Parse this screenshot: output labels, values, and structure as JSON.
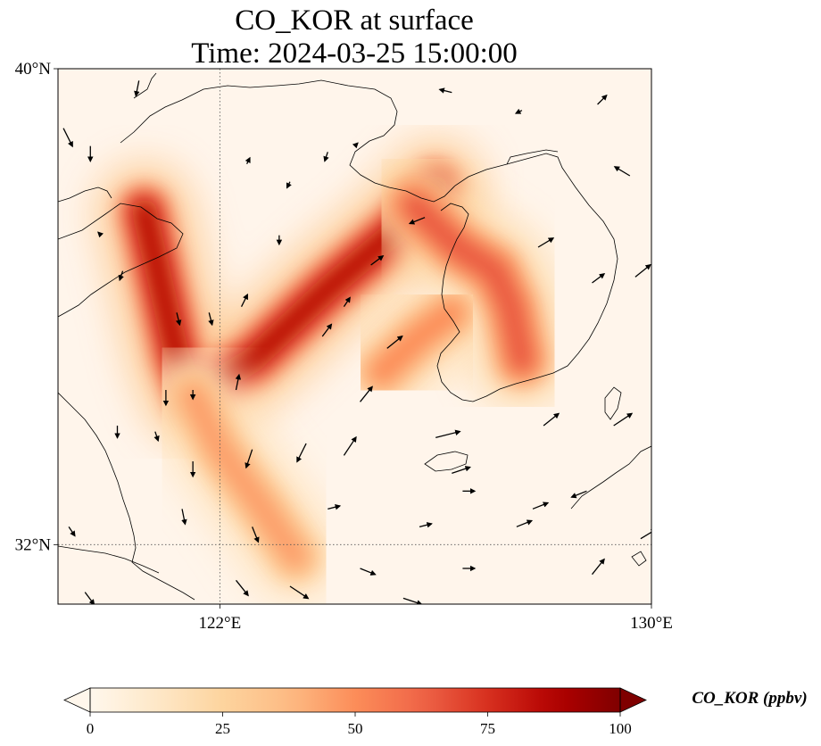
{
  "figure": {
    "title_line1": "CO_KOR at surface",
    "title_line2": "Time: 2024-03-25 15:00:00"
  },
  "map": {
    "lon_range": [
      119,
      130
    ],
    "lat_range": [
      31,
      40
    ],
    "gridlines": {
      "lons": [
        122
      ],
      "lats": [
        32
      ],
      "style": "dotted"
    },
    "x_ticks": [
      {
        "lon": 122,
        "label": "122°E"
      },
      {
        "lon": 130,
        "label": "130°E"
      }
    ],
    "y_ticks": [
      {
        "lat": 40,
        "label": "40°N"
      },
      {
        "lat": 32,
        "label": "32°N"
      }
    ],
    "background_color": "#fff5eb",
    "coastline_color": "#000000"
  },
  "colorbar": {
    "label": "CO_KOR (ppbv)",
    "range": [
      0,
      100
    ],
    "extend": "both",
    "ticks": [
      {
        "value": 0,
        "label": "0"
      },
      {
        "value": 25,
        "label": "25"
      },
      {
        "value": 50,
        "label": "50"
      },
      {
        "value": 75,
        "label": "75"
      },
      {
        "value": 100,
        "label": "100"
      }
    ],
    "colormap": "OrRd",
    "stops": [
      "#fff7ec",
      "#fee8c8",
      "#fdd49e",
      "#fdbb84",
      "#fc8d59",
      "#ef6548",
      "#d7301f",
      "#b30000",
      "#7f0000"
    ]
  },
  "chart_data": {
    "type": "heatmap",
    "variable": "CO_KOR",
    "units": "ppbv",
    "plumes": [
      {
        "path": [
          [
            120.6,
            37.6
          ],
          [
            120.9,
            36.4
          ],
          [
            121.2,
            35.2
          ],
          [
            121.5,
            34.5
          ],
          [
            122.6,
            35.1
          ],
          [
            124.0,
            36.3
          ],
          [
            125.3,
            37.3
          ],
          [
            126.0,
            38.0
          ]
        ],
        "value": 85
      },
      {
        "path": [
          [
            121.5,
            34.5
          ],
          [
            122.0,
            33.6
          ],
          [
            122.8,
            32.6
          ],
          [
            123.4,
            31.8
          ]
        ],
        "value": 45
      },
      {
        "path": [
          [
            125.6,
            37.7
          ],
          [
            126.4,
            37.0
          ],
          [
            127.1,
            36.6
          ],
          [
            127.4,
            36.0
          ],
          [
            127.6,
            35.1
          ]
        ],
        "value": 65
      },
      {
        "path": [
          [
            125.0,
            34.9
          ],
          [
            125.7,
            35.5
          ],
          [
            126.3,
            35.9
          ]
        ],
        "value": 50
      }
    ],
    "wind_vectors": [
      {
        "lon": 119.1,
        "lat": 39.0,
        "u": 0.3,
        "v": -0.6
      },
      {
        "lon": 119.6,
        "lat": 38.7,
        "u": 0.0,
        "v": -0.5
      },
      {
        "lon": 120.5,
        "lat": 39.8,
        "u": -0.1,
        "v": -0.5
      },
      {
        "lon": 122.5,
        "lat": 38.4,
        "u": 0.1,
        "v": 0.2
      },
      {
        "lon": 123.3,
        "lat": 38.1,
        "u": -0.1,
        "v": -0.2
      },
      {
        "lon": 124.0,
        "lat": 38.6,
        "u": -0.1,
        "v": -0.3
      },
      {
        "lon": 124.5,
        "lat": 38.7,
        "u": 0.1,
        "v": 0.1
      },
      {
        "lon": 126.3,
        "lat": 39.6,
        "u": -0.4,
        "v": 0.1
      },
      {
        "lon": 127.6,
        "lat": 39.3,
        "u": -0.2,
        "v": -0.1
      },
      {
        "lon": 129.0,
        "lat": 39.4,
        "u": 0.3,
        "v": 0.3
      },
      {
        "lon": 129.6,
        "lat": 38.2,
        "u": -0.5,
        "v": 0.3
      },
      {
        "lon": 119.8,
        "lat": 37.2,
        "u": -0.1,
        "v": 0.1
      },
      {
        "lon": 120.2,
        "lat": 36.6,
        "u": -0.1,
        "v": -0.3
      },
      {
        "lon": 121.2,
        "lat": 35.9,
        "u": 0.1,
        "v": -0.4
      },
      {
        "lon": 121.8,
        "lat": 35.9,
        "u": 0.1,
        "v": -0.4
      },
      {
        "lon": 122.4,
        "lat": 36.0,
        "u": 0.2,
        "v": 0.4
      },
      {
        "lon": 123.1,
        "lat": 37.2,
        "u": 0.0,
        "v": -0.3
      },
      {
        "lon": 124.8,
        "lat": 36.7,
        "u": 0.4,
        "v": 0.3
      },
      {
        "lon": 125.8,
        "lat": 37.5,
        "u": -0.5,
        "v": -0.2
      },
      {
        "lon": 127.9,
        "lat": 37.0,
        "u": 0.5,
        "v": 0.3
      },
      {
        "lon": 128.9,
        "lat": 36.4,
        "u": 0.4,
        "v": 0.3
      },
      {
        "lon": 129.7,
        "lat": 36.5,
        "u": 0.5,
        "v": 0.4
      },
      {
        "lon": 123.9,
        "lat": 35.5,
        "u": 0.3,
        "v": 0.4
      },
      {
        "lon": 125.1,
        "lat": 35.3,
        "u": 0.5,
        "v": 0.4
      },
      {
        "lon": 121.0,
        "lat": 34.6,
        "u": 0.0,
        "v": -0.5
      },
      {
        "lon": 121.5,
        "lat": 34.6,
        "u": 0.0,
        "v": -0.3
      },
      {
        "lon": 122.3,
        "lat": 34.6,
        "u": 0.1,
        "v": 0.5
      },
      {
        "lon": 124.6,
        "lat": 34.4,
        "u": 0.4,
        "v": 0.5
      },
      {
        "lon": 120.1,
        "lat": 34.0,
        "u": 0.0,
        "v": -0.4
      },
      {
        "lon": 120.8,
        "lat": 33.9,
        "u": 0.1,
        "v": -0.3
      },
      {
        "lon": 123.6,
        "lat": 33.7,
        "u": -0.3,
        "v": -0.6
      },
      {
        "lon": 124.3,
        "lat": 33.5,
        "u": 0.4,
        "v": 0.6
      },
      {
        "lon": 126.0,
        "lat": 33.8,
        "u": 0.8,
        "v": 0.2
      },
      {
        "lon": 128.0,
        "lat": 34.0,
        "u": 0.5,
        "v": 0.4
      },
      {
        "lon": 129.3,
        "lat": 34.0,
        "u": 0.6,
        "v": 0.4
      },
      {
        "lon": 121.5,
        "lat": 33.4,
        "u": 0.0,
        "v": -0.5
      },
      {
        "lon": 122.6,
        "lat": 33.6,
        "u": -0.2,
        "v": -0.6
      },
      {
        "lon": 126.3,
        "lat": 33.2,
        "u": 0.6,
        "v": 0.2
      },
      {
        "lon": 126.5,
        "lat": 32.9,
        "u": 0.4,
        "v": 0.0
      },
      {
        "lon": 127.8,
        "lat": 32.6,
        "u": 0.5,
        "v": 0.2
      },
      {
        "lon": 121.3,
        "lat": 32.6,
        "u": 0.1,
        "v": -0.5
      },
      {
        "lon": 122.6,
        "lat": 32.3,
        "u": 0.2,
        "v": -0.5
      },
      {
        "lon": 124.0,
        "lat": 32.6,
        "u": 0.4,
        "v": 0.1
      },
      {
        "lon": 125.7,
        "lat": 32.3,
        "u": 0.4,
        "v": 0.1
      },
      {
        "lon": 127.5,
        "lat": 32.3,
        "u": 0.5,
        "v": 0.2
      },
      {
        "lon": 129.8,
        "lat": 32.1,
        "u": 0.5,
        "v": 0.3
      },
      {
        "lon": 122.3,
        "lat": 31.4,
        "u": 0.4,
        "v": -0.5
      },
      {
        "lon": 123.3,
        "lat": 31.3,
        "u": 0.6,
        "v": -0.4
      },
      {
        "lon": 124.6,
        "lat": 31.6,
        "u": 0.5,
        "v": -0.2
      },
      {
        "lon": 125.4,
        "lat": 31.1,
        "u": 0.6,
        "v": -0.2
      },
      {
        "lon": 126.5,
        "lat": 31.6,
        "u": 0.4,
        "v": 0.0
      },
      {
        "lon": 128.9,
        "lat": 31.5,
        "u": 0.4,
        "v": 0.5
      },
      {
        "lon": 119.5,
        "lat": 31.2,
        "u": 0.3,
        "v": -0.4
      },
      {
        "lon": 119.2,
        "lat": 32.3,
        "u": 0.2,
        "v": -0.3
      },
      {
        "lon": 128.8,
        "lat": 32.9,
        "u": -0.5,
        "v": -0.2
      },
      {
        "lon": 124.3,
        "lat": 36.0,
        "u": 0.2,
        "v": 0.3
      }
    ]
  }
}
